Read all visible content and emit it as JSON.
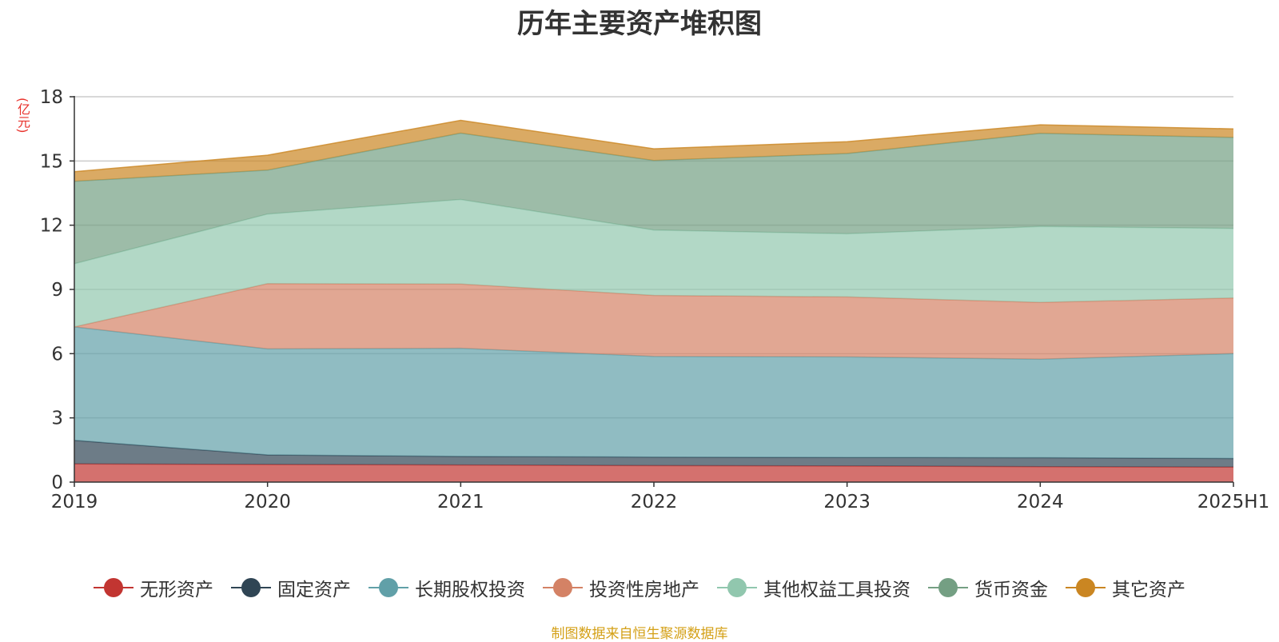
{
  "chart_data": {
    "type": "area",
    "stacked": true,
    "title": "历年主要资产堆积图",
    "unit_label": "(亿元)",
    "x": [
      "2019",
      "2020",
      "2021",
      "2022",
      "2023",
      "2024",
      "2025H1"
    ],
    "ylim": [
      0,
      18
    ],
    "yticks": [
      "0",
      "3",
      "6",
      "9",
      "12",
      "15",
      "18"
    ],
    "grid": true,
    "legend_position": "bottom",
    "series": [
      {
        "name": "无形资产",
        "color": "#c23531",
        "values": [
          0.85,
          0.82,
          0.8,
          0.77,
          0.75,
          0.72,
          0.7
        ]
      },
      {
        "name": "固定资产",
        "color": "#2f4554",
        "values": [
          1.1,
          0.45,
          0.4,
          0.4,
          0.4,
          0.42,
          0.4
        ]
      },
      {
        "name": "长期股权投资",
        "color": "#61a0a8",
        "values": [
          5.3,
          4.95,
          5.05,
          4.7,
          4.7,
          4.6,
          4.9
        ]
      },
      {
        "name": "投资性房地产",
        "color": "#d48265",
        "values": [
          0.0,
          3.05,
          3.0,
          2.85,
          2.8,
          2.65,
          2.6
        ]
      },
      {
        "name": "其他权益工具投资",
        "color": "#91c7ae",
        "values": [
          2.95,
          3.25,
          3.95,
          3.05,
          2.95,
          3.55,
          3.25
        ]
      },
      {
        "name": "货币资金",
        "color": "#749f83",
        "values": [
          3.85,
          2.05,
          3.1,
          3.25,
          3.75,
          4.35,
          4.25
        ]
      },
      {
        "name": "其它资产",
        "color": "#ca8622",
        "values": [
          0.45,
          0.7,
          0.6,
          0.55,
          0.55,
          0.4,
          0.4
        ]
      }
    ]
  },
  "footer": {
    "source": "制图数据来自恒生聚源数据库"
  }
}
